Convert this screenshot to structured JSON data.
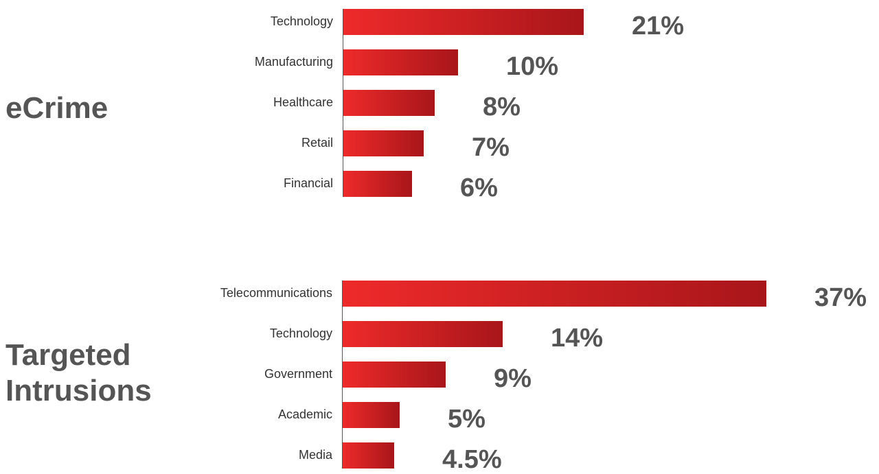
{
  "colors": {
    "bar_start": "#ee2a2a",
    "bar_end": "#a8161a",
    "value_text": "#555555",
    "label_text": "#333333"
  },
  "chart_data": [
    {
      "type": "bar",
      "orientation": "horizontal",
      "title": "eCrime",
      "categories": [
        "Technology",
        "Manufacturing",
        "Healthcare",
        "Retail",
        "Financial"
      ],
      "values": [
        21,
        10,
        8,
        7,
        6
      ],
      "value_labels": [
        "21%",
        "10%",
        "8%",
        "7%",
        "6%"
      ],
      "unit": "%",
      "xlim": [
        0,
        37
      ],
      "grid": false,
      "legend": "none"
    },
    {
      "type": "bar",
      "orientation": "horizontal",
      "title": "Targeted Intrusions",
      "title_lines": [
        "Targeted",
        "Intrusions"
      ],
      "categories": [
        "Telecommunications",
        "Technology",
        "Government",
        "Academic",
        "Media"
      ],
      "values": [
        37,
        14,
        9,
        5,
        4.5
      ],
      "value_labels": [
        "37%",
        "14%",
        "9%",
        "5%",
        "4.5%"
      ],
      "unit": "%",
      "xlim": [
        0,
        37
      ],
      "grid": false,
      "legend": "none"
    }
  ]
}
